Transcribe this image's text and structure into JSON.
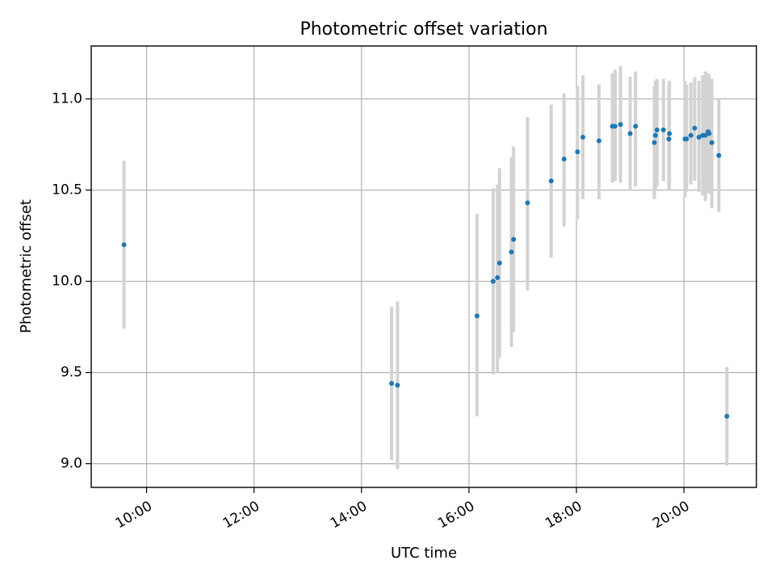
{
  "chart_data": {
    "type": "scatter",
    "title": "Photometric offset variation",
    "xlabel": "UTC time",
    "ylabel": "Photometric offset",
    "x_unit": "hours (UTC)",
    "xlim": [
      8.97,
      21.35
    ],
    "ylim": [
      8.87,
      11.29
    ],
    "grid": true,
    "x_ticks": [
      {
        "value": 10,
        "label": "10:00"
      },
      {
        "value": 12,
        "label": "12:00"
      },
      {
        "value": 14,
        "label": "14:00"
      },
      {
        "value": 16,
        "label": "16:00"
      },
      {
        "value": 18,
        "label": "18:00"
      },
      {
        "value": 20,
        "label": "20:00"
      }
    ],
    "y_ticks": [
      {
        "value": 9.0,
        "label": "9.0"
      },
      {
        "value": 9.5,
        "label": "9.5"
      },
      {
        "value": 10.0,
        "label": "10.0"
      },
      {
        "value": 10.5,
        "label": "10.5"
      },
      {
        "value": 11.0,
        "label": "11.0"
      }
    ],
    "colors": {
      "point": "#1f77b4",
      "errorbar": "#d3d3d3",
      "grid": "#b0b0b0"
    },
    "series": [
      {
        "name": "photometric offset",
        "points": [
          {
            "x": 9.58,
            "y": 10.2,
            "lo": 9.74,
            "hi": 10.66
          },
          {
            "x": 14.56,
            "y": 9.44,
            "lo": 9.02,
            "hi": 9.86
          },
          {
            "x": 14.67,
            "y": 9.43,
            "lo": 8.97,
            "hi": 9.89
          },
          {
            "x": 16.15,
            "y": 9.81,
            "lo": 9.26,
            "hi": 10.37
          },
          {
            "x": 16.45,
            "y": 10.0,
            "lo": 9.49,
            "hi": 10.51
          },
          {
            "x": 16.53,
            "y": 10.02,
            "lo": 9.5,
            "hi": 10.53
          },
          {
            "x": 16.57,
            "y": 10.1,
            "lo": 9.58,
            "hi": 10.62
          },
          {
            "x": 16.79,
            "y": 10.16,
            "lo": 9.64,
            "hi": 10.68
          },
          {
            "x": 16.83,
            "y": 10.23,
            "lo": 9.72,
            "hi": 10.74
          },
          {
            "x": 17.09,
            "y": 10.43,
            "lo": 9.95,
            "hi": 10.9
          },
          {
            "x": 17.53,
            "y": 10.55,
            "lo": 10.13,
            "hi": 10.97
          },
          {
            "x": 17.77,
            "y": 10.67,
            "lo": 10.3,
            "hi": 11.03
          },
          {
            "x": 18.02,
            "y": 10.71,
            "lo": 10.34,
            "hi": 11.07
          },
          {
            "x": 18.12,
            "y": 10.79,
            "lo": 10.45,
            "hi": 11.13
          },
          {
            "x": 18.42,
            "y": 10.77,
            "lo": 10.45,
            "hi": 11.08
          },
          {
            "x": 18.67,
            "y": 10.85,
            "lo": 10.54,
            "hi": 11.14
          },
          {
            "x": 18.72,
            "y": 10.85,
            "lo": 10.55,
            "hi": 11.16
          },
          {
            "x": 18.82,
            "y": 10.86,
            "lo": 10.54,
            "hi": 11.18
          },
          {
            "x": 19.0,
            "y": 10.81,
            "lo": 10.5,
            "hi": 11.12
          },
          {
            "x": 19.1,
            "y": 10.85,
            "lo": 10.52,
            "hi": 11.15
          },
          {
            "x": 19.45,
            "y": 10.76,
            "lo": 10.45,
            "hi": 11.07
          },
          {
            "x": 19.47,
            "y": 10.8,
            "lo": 10.5,
            "hi": 11.1
          },
          {
            "x": 19.5,
            "y": 10.83,
            "lo": 10.52,
            "hi": 11.11
          },
          {
            "x": 19.62,
            "y": 10.83,
            "lo": 10.55,
            "hi": 11.11
          },
          {
            "x": 19.72,
            "y": 10.78,
            "lo": 10.5,
            "hi": 11.07
          },
          {
            "x": 19.73,
            "y": 10.81,
            "lo": 10.5,
            "hi": 11.1
          },
          {
            "x": 20.02,
            "y": 10.78,
            "lo": 10.46,
            "hi": 11.1
          },
          {
            "x": 20.05,
            "y": 10.78,
            "lo": 10.49,
            "hi": 11.08
          },
          {
            "x": 20.13,
            "y": 10.8,
            "lo": 10.53,
            "hi": 11.09
          },
          {
            "x": 20.2,
            "y": 10.84,
            "lo": 10.55,
            "hi": 11.12
          },
          {
            "x": 20.28,
            "y": 10.79,
            "lo": 10.49,
            "hi": 11.1
          },
          {
            "x": 20.35,
            "y": 10.8,
            "lo": 10.47,
            "hi": 11.13
          },
          {
            "x": 20.4,
            "y": 10.8,
            "lo": 10.44,
            "hi": 11.15
          },
          {
            "x": 20.45,
            "y": 10.82,
            "lo": 10.49,
            "hi": 11.14
          },
          {
            "x": 20.47,
            "y": 10.81,
            "lo": 10.48,
            "hi": 11.13
          },
          {
            "x": 20.52,
            "y": 10.76,
            "lo": 10.4,
            "hi": 11.11
          },
          {
            "x": 20.65,
            "y": 10.69,
            "lo": 10.38,
            "hi": 11.0
          },
          {
            "x": 20.8,
            "y": 9.26,
            "lo": 8.99,
            "hi": 9.53
          }
        ]
      }
    ]
  }
}
